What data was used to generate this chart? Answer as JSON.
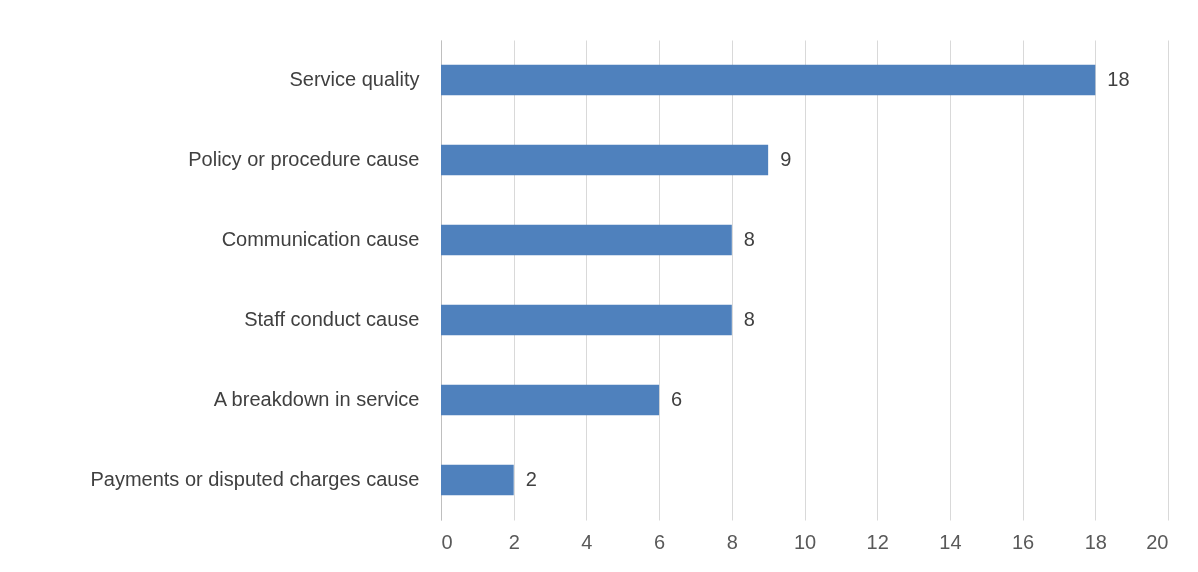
{
  "chart_data": {
    "type": "bar",
    "orientation": "horizontal",
    "categories": [
      "Service quality",
      "Policy or procedure cause",
      "Communication cause",
      "Staff conduct cause",
      "A breakdown in service",
      "Payments or disputed charges cause"
    ],
    "values": [
      18,
      9,
      8,
      8,
      6,
      2
    ],
    "color": "#4f81bd",
    "xlim": [
      0,
      20
    ],
    "xticks": [
      0,
      2,
      4,
      6,
      8,
      10,
      12,
      14,
      16,
      18,
      20
    ],
    "grid": "x",
    "data_labels": true
  }
}
